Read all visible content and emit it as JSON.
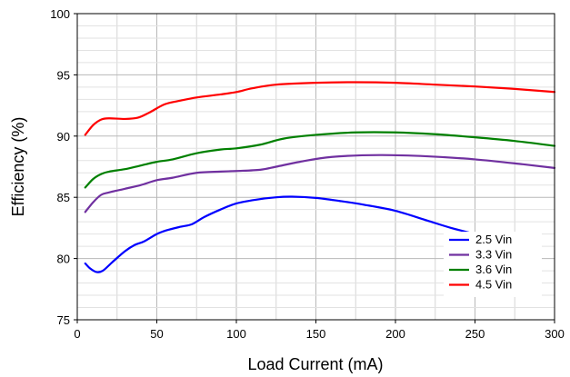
{
  "chart_data": {
    "type": "line",
    "title": "",
    "xlabel": "Load Current (mA)",
    "ylabel": "Efficiency (%)",
    "xlim": [
      0,
      300
    ],
    "ylim": [
      75,
      100
    ],
    "x_ticks": [
      0,
      50,
      100,
      150,
      200,
      250,
      300
    ],
    "y_ticks": [
      75,
      80,
      85,
      90,
      95,
      100
    ],
    "x_tick_labels": [
      "0",
      "50",
      "100",
      "150",
      "200",
      "250",
      "300"
    ],
    "y_tick_labels": [
      "75",
      "80",
      "85",
      "90",
      "95",
      "100"
    ],
    "grid": true,
    "legend_position": "bottom-right",
    "series": [
      {
        "name": "2.5 Vin",
        "color": "#0000ff",
        "x": [
          5,
          8,
          12,
          16,
          22,
          30,
          36,
          42,
          50,
          56,
          65,
          72,
          80,
          90,
          100,
          112,
          125,
          135,
          150,
          165,
          180,
          200,
          220,
          235,
          250
        ],
        "y": [
          79.6,
          79.2,
          78.9,
          79.0,
          79.7,
          80.6,
          81.1,
          81.4,
          82.0,
          82.3,
          82.6,
          82.8,
          83.4,
          84.0,
          84.5,
          84.8,
          85.0,
          85.05,
          84.95,
          84.7,
          84.4,
          83.9,
          83.1,
          82.5,
          82.0
        ]
      },
      {
        "name": "3.3 Vin",
        "color": "#7030a0",
        "x": [
          5,
          10,
          15,
          20,
          30,
          40,
          50,
          60,
          75,
          90,
          100,
          115,
          125,
          140,
          160,
          190,
          220,
          250,
          280,
          300
        ],
        "y": [
          83.8,
          84.6,
          85.2,
          85.4,
          85.7,
          86.0,
          86.4,
          86.6,
          87.0,
          87.1,
          87.15,
          87.25,
          87.5,
          87.9,
          88.3,
          88.45,
          88.35,
          88.1,
          87.7,
          87.4
        ]
      },
      {
        "name": "3.6 Vin",
        "color": "#008000",
        "x": [
          5,
          10,
          15,
          20,
          30,
          40,
          50,
          60,
          75,
          90,
          100,
          115,
          130,
          150,
          175,
          200,
          225,
          250,
          275,
          300
        ],
        "y": [
          85.8,
          86.5,
          86.9,
          87.1,
          87.3,
          87.6,
          87.9,
          88.1,
          88.6,
          88.9,
          89.0,
          89.3,
          89.8,
          90.1,
          90.3,
          90.3,
          90.15,
          89.9,
          89.6,
          89.2
        ]
      },
      {
        "name": "4.5 Vin",
        "color": "#ff0000",
        "x": [
          5,
          10,
          15,
          20,
          30,
          38,
          45,
          55,
          65,
          75,
          90,
          100,
          110,
          125,
          150,
          175,
          200,
          225,
          250,
          275,
          300
        ],
        "y": [
          90.1,
          90.9,
          91.35,
          91.45,
          91.4,
          91.5,
          91.9,
          92.6,
          92.9,
          93.15,
          93.4,
          93.6,
          93.9,
          94.2,
          94.35,
          94.4,
          94.35,
          94.2,
          94.05,
          93.85,
          93.6
        ]
      }
    ]
  }
}
